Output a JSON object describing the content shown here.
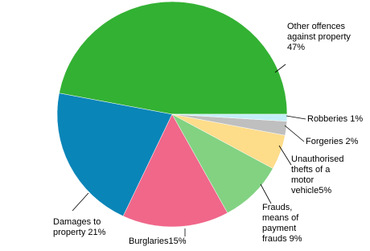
{
  "chart_data": {
    "type": "pie",
    "categories": [
      "Other offences against property",
      "Damages to property",
      "Burglaries",
      "Frauds, means of payment frauds",
      "Unauthorised thefts of a motor vehicle",
      "Forgeries",
      "Robberies"
    ],
    "values": [
      47,
      21,
      15,
      9,
      5,
      2,
      1
    ],
    "value_labels": [
      "47%",
      "21%",
      "15%",
      "9%",
      "5%",
      "2%",
      "1%"
    ],
    "colors": [
      "#33b133",
      "#0a85b8",
      "#f0678a",
      "#82d282",
      "#fddc8a",
      "#bfbfbf",
      "#c3eef8"
    ]
  }
}
